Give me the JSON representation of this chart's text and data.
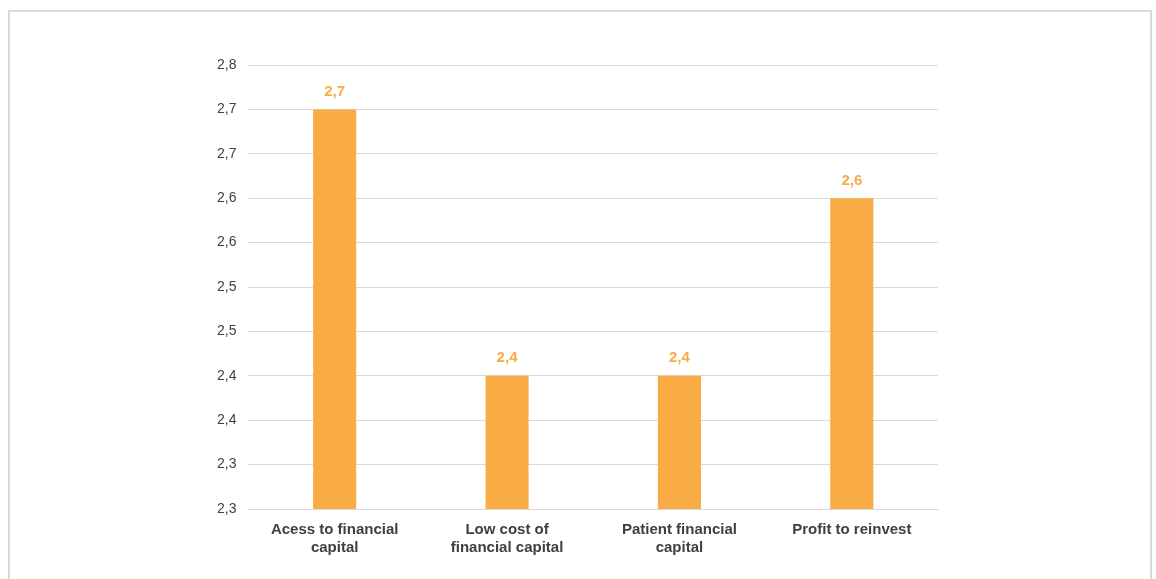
{
  "chart_data": {
    "type": "bar",
    "categories": [
      "Acess to financial capital",
      "Low cost of financial capital",
      "Patient financial capital",
      "Profit to reinvest"
    ],
    "values": [
      2.7,
      2.4,
      2.4,
      2.6
    ],
    "value_labels": [
      "2,7",
      "2,4",
      "2,4",
      "2,6"
    ],
    "color": "#f9ab45",
    "ylim": [
      2.25,
      2.75
    ],
    "yticks": [
      {
        "value": 2.25,
        "label": "2,3"
      },
      {
        "value": 2.3,
        "label": "2,3"
      },
      {
        "value": 2.35,
        "label": "2,4"
      },
      {
        "value": 2.4,
        "label": "2,4"
      },
      {
        "value": 2.45,
        "label": "2,5"
      },
      {
        "value": 2.5,
        "label": "2,5"
      },
      {
        "value": 2.55,
        "label": "2,6"
      },
      {
        "value": 2.6,
        "label": "2,6"
      },
      {
        "value": 2.65,
        "label": "2,7"
      },
      {
        "value": 2.7,
        "label": "2,7"
      },
      {
        "value": 2.75,
        "label": "2,8"
      }
    ],
    "grid": "y"
  }
}
